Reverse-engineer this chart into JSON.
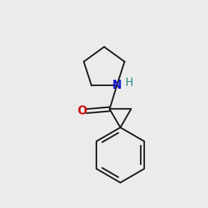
{
  "background_color": "#ebebeb",
  "bond_color": "#1a1a1a",
  "N_color": "#1414cc",
  "H_color": "#2a8080",
  "O_color": "#cc1414",
  "line_width": 1.6,
  "figsize": [
    3.0,
    3.0
  ],
  "dpi": 100,
  "xlim": [
    0,
    10
  ],
  "ylim": [
    0,
    10
  ]
}
